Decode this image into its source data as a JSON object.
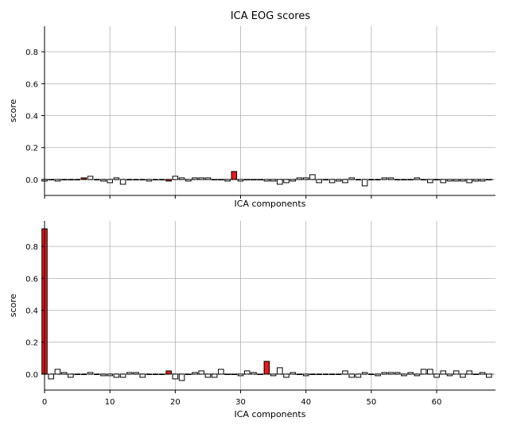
{
  "figure": {
    "title": "ICA EOG scores"
  },
  "chart_data": [
    {
      "type": "bar",
      "xlabel": "ICA components",
      "ylabel": "score",
      "xlim": [
        0,
        69
      ],
      "ylim": [
        -0.1,
        0.96
      ],
      "xticks": [
        0,
        10,
        20,
        30,
        40,
        50,
        60
      ],
      "show_xticklabels": false,
      "yticks": [
        0.0,
        0.2,
        0.4,
        0.6,
        0.8
      ],
      "grid": true,
      "highlight_color": "#e41a1c",
      "bar_color": "#ffffff",
      "edge_color": "#000000",
      "highlighted": [
        6,
        19,
        29
      ],
      "values": [
        -0.01,
        0.0,
        -0.01,
        0.0,
        0.0,
        0.0,
        0.01,
        0.02,
        0.0,
        -0.01,
        -0.02,
        0.01,
        -0.03,
        0.0,
        0.0,
        0.0,
        -0.01,
        0.0,
        0.0,
        -0.01,
        0.02,
        0.01,
        -0.01,
        0.01,
        0.01,
        0.01,
        0.0,
        0.0,
        -0.01,
        0.05,
        -0.01,
        0.0,
        0.0,
        0.0,
        -0.01,
        -0.01,
        -0.03,
        -0.02,
        -0.01,
        0.01,
        0.01,
        0.03,
        -0.02,
        0.0,
        -0.02,
        -0.01,
        -0.02,
        0.01,
        0.0,
        -0.04,
        0.0,
        0.0,
        0.01,
        0.01,
        0.0,
        0.0,
        0.0,
        0.01,
        0.0,
        -0.02,
        0.0,
        -0.02,
        -0.01,
        -0.01,
        -0.01,
        -0.02,
        -0.01,
        -0.01,
        0.0
      ]
    },
    {
      "type": "bar",
      "xlabel": "ICA components",
      "ylabel": "score",
      "xlim": [
        0,
        69
      ],
      "ylim": [
        -0.1,
        0.96
      ],
      "xticks": [
        0,
        10,
        20,
        30,
        40,
        50,
        60
      ],
      "show_xticklabels": true,
      "yticks": [
        0.0,
        0.2,
        0.4,
        0.6,
        0.8
      ],
      "grid": true,
      "highlight_color": "#e41a1c",
      "bar_color": "#ffffff",
      "edge_color": "#000000",
      "highlighted": [
        0,
        19,
        34
      ],
      "values": [
        0.91,
        -0.03,
        0.03,
        0.01,
        -0.02,
        0.0,
        0.0,
        0.01,
        0.0,
        -0.01,
        -0.01,
        -0.02,
        -0.02,
        0.01,
        0.01,
        -0.02,
        0.0,
        0.0,
        0.0,
        0.02,
        -0.03,
        -0.04,
        0.0,
        0.01,
        0.02,
        -0.02,
        -0.02,
        0.03,
        0.0,
        0.0,
        -0.01,
        0.02,
        0.01,
        0.0,
        0.08,
        -0.01,
        0.04,
        -0.02,
        0.01,
        0.0,
        -0.01,
        0.0,
        0.0,
        0.0,
        0.0,
        0.0,
        0.02,
        -0.02,
        -0.02,
        0.01,
        0.0,
        -0.01,
        0.01,
        0.01,
        0.01,
        -0.01,
        0.01,
        -0.01,
        0.03,
        0.03,
        -0.02,
        0.02,
        -0.01,
        0.02,
        -0.02,
        0.02,
        0.0,
        0.01,
        -0.02
      ]
    }
  ]
}
